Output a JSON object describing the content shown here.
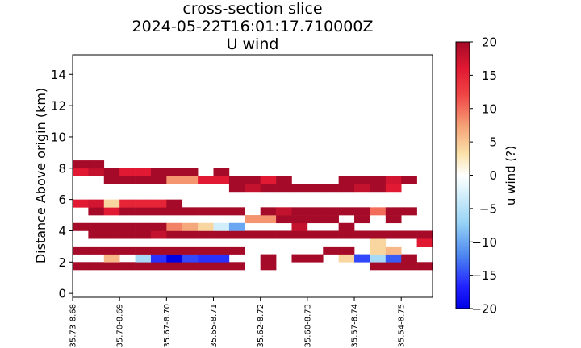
{
  "chart_data": {
    "type": "heatmap",
    "title": [
      "cross-section slice",
      "2024-05-22T16:01:17.710000Z",
      "U wind"
    ],
    "xlabel": "",
    "ylabel": "Distance Above origin (km)",
    "colorbar_label": "u wind (?)",
    "colormap": "RdYlBu_r",
    "clim": [
      -20,
      20
    ],
    "colorbar_ticks": [
      -20,
      -15,
      -10,
      -5,
      0,
      5,
      10,
      15,
      20
    ],
    "ylim": [
      -0.25,
      15.25
    ],
    "yticks": [
      0,
      2,
      4,
      6,
      8,
      10,
      12,
      14
    ],
    "xlim": [
      0,
      23
    ],
    "xticks": [
      {
        "pos": 0,
        "label": "35.73-8.68"
      },
      {
        "pos": 3,
        "label": "35.70-8.69"
      },
      {
        "pos": 6,
        "label": "35.67-8.70"
      },
      {
        "pos": 9,
        "label": "35.65-8.71"
      },
      {
        "pos": 12,
        "label": "35.62-8.72"
      },
      {
        "pos": 15,
        "label": "35.60-8.73"
      },
      {
        "pos": 18,
        "label": "35.57-8.74"
      },
      {
        "pos": 21,
        "label": "35.54-8.75"
      }
    ],
    "cell_height_km": 0.5,
    "rows": [
      {
        "y0": 1.5,
        "cells": [
          [
            0,
            20
          ],
          [
            1,
            20
          ],
          [
            2,
            20
          ],
          [
            3,
            20
          ],
          [
            4,
            20
          ],
          [
            5,
            20
          ],
          [
            6,
            20
          ],
          [
            7,
            20
          ],
          [
            8,
            20
          ],
          [
            9,
            20
          ],
          [
            10,
            20
          ],
          [
            11,
            null
          ],
          [
            12,
            20
          ],
          [
            13,
            null
          ],
          [
            14,
            null
          ],
          [
            15,
            null
          ],
          [
            16,
            null
          ],
          [
            17,
            null
          ],
          [
            18,
            null
          ],
          [
            19,
            20
          ],
          [
            20,
            20
          ],
          [
            21,
            20
          ],
          [
            22,
            20
          ]
        ]
      },
      {
        "y0": 2.0,
        "cells": [
          [
            2,
            6
          ],
          [
            3,
            null
          ],
          [
            4,
            -6
          ],
          [
            5,
            -16
          ],
          [
            6,
            -20
          ],
          [
            7,
            -15
          ],
          [
            8,
            -16
          ],
          [
            9,
            -16
          ],
          [
            12,
            20
          ],
          [
            14,
            20
          ],
          [
            15,
            20
          ],
          [
            17,
            4
          ],
          [
            18,
            -15
          ],
          [
            19,
            -6
          ],
          [
            20,
            -14
          ],
          [
            21,
            20
          ]
        ]
      },
      {
        "y0": 2.5,
        "cells": [
          [
            0,
            20
          ],
          [
            1,
            20
          ],
          [
            2,
            20
          ],
          [
            3,
            20
          ],
          [
            4,
            20
          ],
          [
            5,
            20
          ],
          [
            6,
            20
          ],
          [
            7,
            20
          ],
          [
            8,
            20
          ],
          [
            9,
            20
          ],
          [
            10,
            20
          ],
          [
            16,
            20
          ],
          [
            17,
            20
          ],
          [
            19,
            4
          ],
          [
            20,
            6
          ]
        ]
      },
      {
        "y0": 3.0,
        "cells": [
          [
            19,
            4
          ],
          [
            22,
            16
          ],
          [
            23,
            20
          ]
        ]
      },
      {
        "y0": 3.5,
        "cells": [
          [
            1,
            20
          ],
          [
            2,
            20
          ],
          [
            3,
            20
          ],
          [
            4,
            20
          ],
          [
            5,
            18
          ],
          [
            6,
            20
          ],
          [
            7,
            20
          ],
          [
            8,
            20
          ],
          [
            9,
            20
          ],
          [
            10,
            20
          ],
          [
            11,
            20
          ],
          [
            12,
            20
          ],
          [
            13,
            20
          ],
          [
            14,
            20
          ],
          [
            15,
            20
          ],
          [
            16,
            20
          ],
          [
            17,
            20
          ],
          [
            18,
            20
          ],
          [
            19,
            20
          ],
          [
            20,
            20
          ],
          [
            21,
            20
          ],
          [
            22,
            20
          ],
          [
            23,
            20
          ]
        ]
      },
      {
        "y0": 4.0,
        "cells": [
          [
            0,
            20
          ],
          [
            1,
            20
          ],
          [
            2,
            20
          ],
          [
            3,
            20
          ],
          [
            4,
            20
          ],
          [
            5,
            20
          ],
          [
            6,
            9
          ],
          [
            7,
            7
          ],
          [
            8,
            4
          ],
          [
            9,
            -3
          ],
          [
            10,
            -10
          ],
          [
            11,
            null
          ],
          [
            12,
            null
          ],
          [
            13,
            null
          ],
          [
            14,
            18
          ],
          [
            17,
            20
          ]
        ]
      },
      {
        "y0": 4.5,
        "cells": [
          [
            11,
            8
          ],
          [
            12,
            8
          ],
          [
            13,
            20
          ],
          [
            14,
            20
          ],
          [
            15,
            20
          ],
          [
            16,
            20
          ],
          [
            18,
            20
          ],
          [
            20,
            20
          ]
        ]
      },
      {
        "y0": 5.0,
        "cells": [
          [
            1,
            20
          ],
          [
            2,
            16
          ],
          [
            3,
            20
          ],
          [
            4,
            20
          ],
          [
            5,
            20
          ],
          [
            6,
            20
          ],
          [
            7,
            20
          ],
          [
            8,
            20
          ],
          [
            9,
            20
          ],
          [
            10,
            20
          ],
          [
            12,
            20
          ],
          [
            13,
            18
          ],
          [
            14,
            20
          ],
          [
            15,
            20
          ],
          [
            16,
            20
          ],
          [
            17,
            20
          ],
          [
            18,
            20
          ],
          [
            19,
            10
          ],
          [
            20,
            20
          ],
          [
            21,
            20
          ]
        ]
      },
      {
        "y0": 5.5,
        "cells": [
          [
            0,
            16
          ],
          [
            1,
            17
          ],
          [
            2,
            4
          ],
          [
            3,
            15
          ],
          [
            4,
            15
          ],
          [
            5,
            15
          ],
          [
            6,
            20
          ]
        ]
      },
      {
        "y0": 6.5,
        "cells": [
          [
            10,
            20
          ],
          [
            11,
            18
          ],
          [
            12,
            20
          ],
          [
            13,
            20
          ],
          [
            14,
            20
          ],
          [
            15,
            20
          ],
          [
            16,
            20
          ],
          [
            17,
            20
          ],
          [
            18,
            18
          ],
          [
            19,
            20
          ],
          [
            20,
            16
          ]
        ]
      },
      {
        "y0": 7.0,
        "cells": [
          [
            2,
            20
          ],
          [
            3,
            20
          ],
          [
            4,
            20
          ],
          [
            5,
            20
          ],
          [
            6,
            8
          ],
          [
            7,
            8
          ],
          [
            8,
            16
          ],
          [
            9,
            16
          ],
          [
            10,
            20
          ],
          [
            11,
            20
          ],
          [
            12,
            16
          ],
          [
            13,
            20
          ],
          [
            17,
            20
          ],
          [
            18,
            20
          ],
          [
            19,
            20
          ],
          [
            20,
            17
          ],
          [
            21,
            20
          ]
        ]
      },
      {
        "y0": 7.5,
        "cells": [
          [
            0,
            16
          ],
          [
            1,
            18
          ],
          [
            2,
            20
          ],
          [
            3,
            16
          ],
          [
            4,
            16
          ],
          [
            5,
            20
          ],
          [
            6,
            20
          ],
          [
            7,
            20
          ],
          [
            9,
            20
          ]
        ]
      },
      {
        "y0": 8.0,
        "cells": [
          [
            0,
            20
          ],
          [
            1,
            20
          ]
        ]
      }
    ]
  }
}
